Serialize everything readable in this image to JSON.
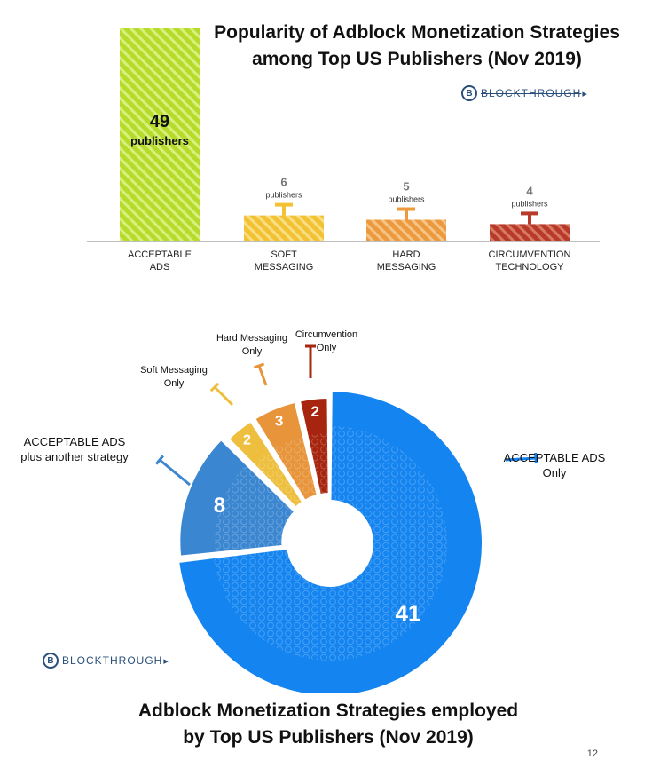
{
  "slide": {
    "page_number": "12"
  },
  "brand": {
    "logo_mark": "B",
    "logo_text": "BLOCKTHROUGH"
  },
  "chart_data": [
    {
      "type": "bar",
      "title": "Popularity of Adblock Monetization Strategies among Top US Publishers (Nov 2019)",
      "title_lines": [
        "Popularity of Adblock Monetization Strategies",
        "among Top US Publishers (Nov 2019)"
      ],
      "categories": [
        [
          "ACCEPTABLE",
          "ADS"
        ],
        [
          "SOFT",
          "MESSAGING"
        ],
        [
          "HARD",
          "MESSAGING"
        ],
        [
          "CIRCUMVENTION",
          "TECHNOLOGY"
        ]
      ],
      "values": [
        49,
        6,
        5,
        4
      ],
      "value_unit": "publishers",
      "colors": [
        "#b5dc2a",
        "#f2c233",
        "#ec9a3d",
        "#b83a2a"
      ],
      "ylim": [
        0,
        49
      ],
      "grid": false,
      "legend": "none"
    },
    {
      "type": "pie",
      "title": "Adblock Monetization Strategies employed by Top US Publishers (Nov 2019)",
      "title_lines": [
        "Adblock Monetization Strategies employed",
        "by Top US Publishers (Nov 2019)"
      ],
      "slices": [
        {
          "label_lines": [
            "ACCEPTABLE ADS",
            "Only"
          ],
          "value": 41,
          "color": "#1384f0"
        },
        {
          "label_lines": [
            "ACCEPTABLE ADS",
            "plus another strategy"
          ],
          "value": 8,
          "color": "#3b86d0"
        },
        {
          "label_lines": [
            "Soft Messaging",
            "Only"
          ],
          "value": 2,
          "color": "#eebf3e"
        },
        {
          "label_lines": [
            "Hard Messaging",
            "Only"
          ],
          "value": 3,
          "color": "#e8943a"
        },
        {
          "label_lines": [
            "Circumvention",
            "Only"
          ],
          "value": 2,
          "color": "#a7250f"
        }
      ],
      "donut": true,
      "legend": "callouts"
    }
  ]
}
